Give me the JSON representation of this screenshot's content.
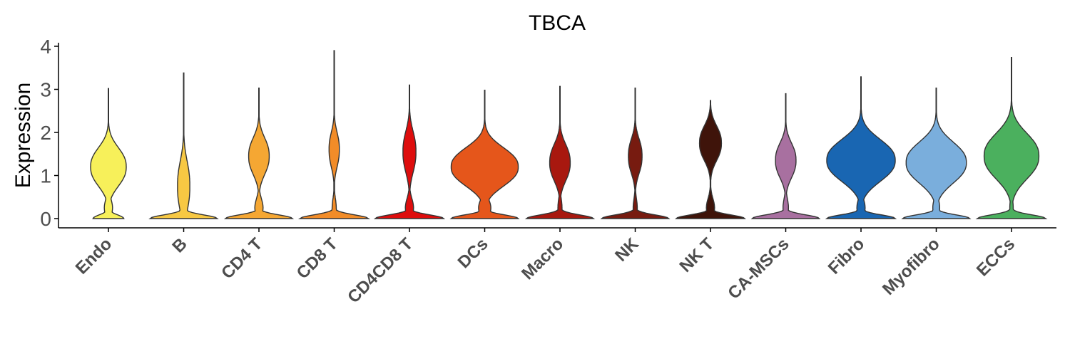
{
  "chart_data": {
    "type": "violin",
    "title": "TBCA",
    "ylabel": "Expression",
    "xlabel": "",
    "ylim": [
      -0.2,
      4.1
    ],
    "yticks": [
      0,
      1,
      2,
      3,
      4
    ],
    "grid": false,
    "legend": "none",
    "categories": [
      {
        "label": "Endo",
        "color": "#F7F05A",
        "max": 3.02,
        "bottom": 0.45,
        "mid": 0.12,
        "peak": 1.2,
        "peakw": 0.52,
        "peaksd": 0.42
      },
      {
        "label": "B",
        "color": "#F7C843",
        "max": 3.38,
        "bottom": 0.98,
        "mid": 0.08,
        "peak": 0.75,
        "peakw": 0.18,
        "peaksd": 0.55
      },
      {
        "label": "CD4 T",
        "color": "#F5A733",
        "max": 3.03,
        "bottom": 0.98,
        "mid": 0.12,
        "peak": 1.45,
        "peakw": 0.3,
        "peaksd": 0.4
      },
      {
        "label": "CD8 T",
        "color": "#F28C28",
        "max": 3.9,
        "bottom": 1.0,
        "mid": 0.06,
        "peak": 1.6,
        "peakw": 0.15,
        "peaksd": 0.38
      },
      {
        "label": "CD4CD8 T",
        "color": "#DE0D0D",
        "max": 3.1,
        "bottom": 1.0,
        "mid": 0.12,
        "peak": 1.55,
        "peakw": 0.19,
        "peaksd": 0.45
      },
      {
        "label": "DCs",
        "color": "#E5561B",
        "max": 2.98,
        "bottom": 0.98,
        "mid": 0.18,
        "peak": 1.2,
        "peakw": 0.98,
        "peaksd": 0.42
      },
      {
        "label": "Macro",
        "color": "#A8180F",
        "max": 3.07,
        "bottom": 0.98,
        "mid": 0.06,
        "peak": 1.3,
        "peakw": 0.3,
        "peaksd": 0.4
      },
      {
        "label": "NK",
        "color": "#771B10",
        "max": 3.03,
        "bottom": 0.98,
        "mid": 0.06,
        "peak": 1.45,
        "peakw": 0.2,
        "peaksd": 0.38
      },
      {
        "label": "NK T",
        "color": "#3F140A",
        "max": 2.74,
        "bottom": 1.0,
        "mid": 0.12,
        "peak": 1.75,
        "peakw": 0.32,
        "peaksd": 0.38
      },
      {
        "label": "CA-MSCs",
        "color": "#A870A0",
        "max": 2.9,
        "bottom": 0.98,
        "mid": 0.08,
        "peak": 1.35,
        "peakw": 0.3,
        "peaksd": 0.38
      },
      {
        "label": "Fibro",
        "color": "#1966B2",
        "max": 3.29,
        "bottom": 1.0,
        "mid": 0.12,
        "peak": 1.35,
        "peakw": 1.0,
        "peaksd": 0.46
      },
      {
        "label": "Myofibro",
        "color": "#7AAEDC",
        "max": 3.03,
        "bottom": 0.98,
        "mid": 0.1,
        "peak": 1.3,
        "peakw": 0.88,
        "peaksd": 0.45
      },
      {
        "label": "ECCs",
        "color": "#4BB05E",
        "max": 3.74,
        "bottom": 1.0,
        "mid": 0.05,
        "peak": 1.45,
        "peakw": 0.8,
        "peaksd": 0.5
      }
    ]
  }
}
